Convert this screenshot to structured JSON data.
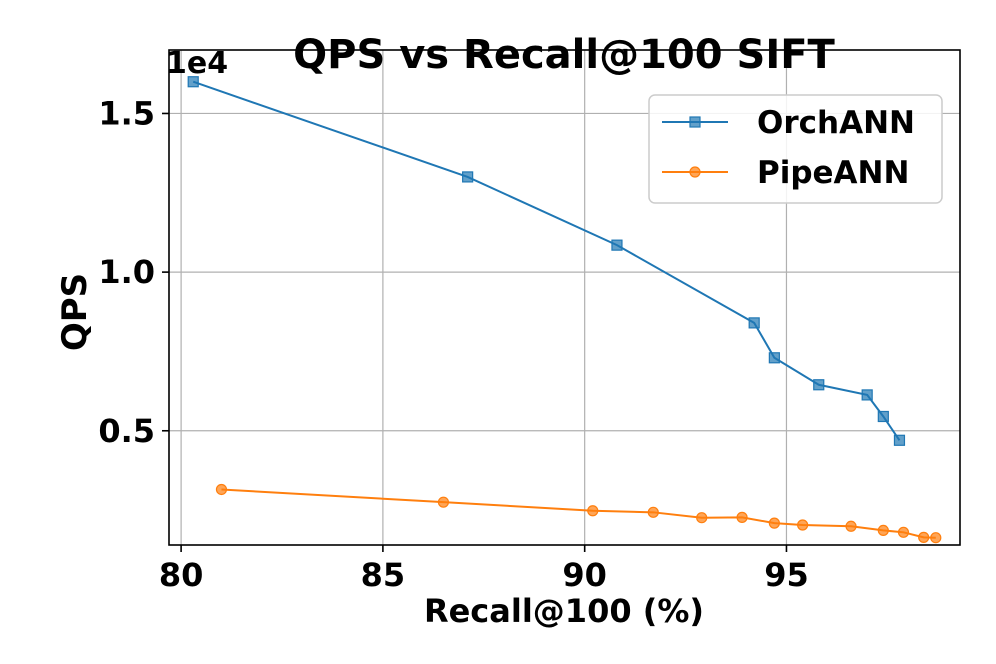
{
  "chart_data": {
    "type": "line",
    "title": "QPS vs Recall@100 SIFT",
    "xlabel": "Recall@100 (%)",
    "ylabel": "QPS",
    "y_scale_label": "1e4",
    "y_scale": 10000,
    "xlim": [
      79.7,
      99.3
    ],
    "ylim": [
      1400,
      17000
    ],
    "grid": true,
    "legend_position": "top-right",
    "x_ticks": [
      80,
      85,
      90,
      95
    ],
    "x_tick_labels": [
      "80",
      "85",
      "90",
      "95"
    ],
    "y_ticks": [
      5000,
      10000,
      15000
    ],
    "y_tick_labels": [
      "0.5",
      "1.0",
      "1.5"
    ],
    "series": [
      {
        "name": "OrchANN",
        "color": "#1f77b4",
        "marker": "square",
        "x": [
          80.3,
          87.1,
          90.8,
          94.2,
          94.7,
          95.8,
          97.0,
          97.4,
          97.8
        ],
        "y": [
          16000,
          13000,
          10850,
          8400,
          7300,
          6450,
          6130,
          5450,
          4700
        ]
      },
      {
        "name": "PipeANN",
        "color": "#ff7f0e",
        "marker": "circle",
        "x": [
          81.0,
          86.5,
          90.2,
          91.7,
          92.9,
          93.9,
          94.7,
          95.4,
          96.6,
          97.4,
          97.9,
          98.4,
          98.7
        ],
        "y": [
          3150,
          2750,
          2480,
          2430,
          2260,
          2270,
          2090,
          2030,
          1990,
          1860,
          1800,
          1640,
          1630
        ]
      }
    ]
  }
}
